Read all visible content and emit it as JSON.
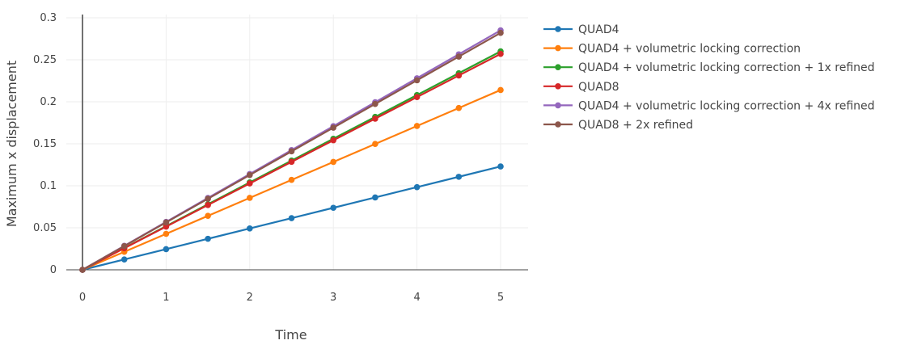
{
  "chart_data": {
    "type": "line",
    "title": "",
    "xlabel": "Time",
    "ylabel": "Maximum x displacement",
    "xlim": [
      0,
      5
    ],
    "ylim": [
      0,
      0.3
    ],
    "x_ticks": [
      0,
      1,
      2,
      3,
      4,
      5
    ],
    "x_tick_labels": [
      "0",
      "1",
      "2",
      "3",
      "4",
      "5"
    ],
    "y_ticks": [
      0,
      0.05,
      0.1,
      0.15,
      0.2,
      0.25,
      0.3
    ],
    "y_tick_labels": [
      "0",
      "0.05",
      "0.1",
      "0.15",
      "0.2",
      "0.25",
      "0.3"
    ],
    "grid": true,
    "legend_position": "right",
    "x": [
      0,
      0.5,
      1,
      1.5,
      2,
      2.5,
      3,
      3.5,
      4,
      4.5,
      5
    ],
    "series": [
      {
        "name": "QUAD4",
        "color": "#1f77b4",
        "values": [
          0,
          0.0123,
          0.0246,
          0.0369,
          0.0492,
          0.0615,
          0.0738,
          0.0861,
          0.0984,
          0.1107,
          0.123
        ]
      },
      {
        "name": "QUAD4 + volumetric locking correction",
        "color": "#ff7f0e",
        "values": [
          0,
          0.0214,
          0.0428,
          0.0642,
          0.0856,
          0.107,
          0.1284,
          0.1498,
          0.1712,
          0.1926,
          0.214
        ]
      },
      {
        "name": "QUAD4 + volumetric locking correction + 1x refined",
        "color": "#2ca02c",
        "values": [
          0,
          0.026,
          0.052,
          0.078,
          0.104,
          0.13,
          0.156,
          0.182,
          0.208,
          0.234,
          0.26
        ]
      },
      {
        "name": "QUAD8",
        "color": "#d62728",
        "values": [
          0,
          0.0257,
          0.0514,
          0.0771,
          0.1028,
          0.1285,
          0.1542,
          0.1799,
          0.2056,
          0.2313,
          0.257
        ]
      },
      {
        "name": "QUAD4 + volumetric locking correction + 4x refined",
        "color": "#9467bd",
        "values": [
          0,
          0.0285,
          0.057,
          0.0855,
          0.114,
          0.1425,
          0.171,
          0.1995,
          0.228,
          0.2565,
          0.285
        ]
      },
      {
        "name": "QUAD8 + 2x refined",
        "color": "#8c564b",
        "values": [
          0,
          0.0282,
          0.0564,
          0.0846,
          0.1128,
          0.141,
          0.1692,
          0.1974,
          0.2256,
          0.2538,
          0.282
        ]
      }
    ]
  }
}
